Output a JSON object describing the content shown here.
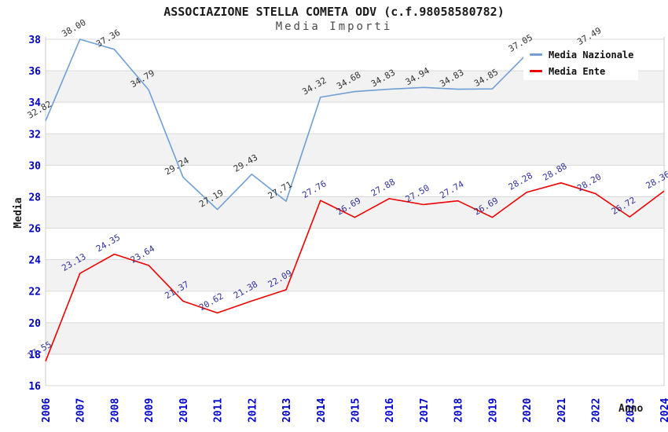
{
  "title": "ASSOCIAZIONE STELLA COMETA ODV (c.f.98058580782)",
  "subtitle": "Media Importi",
  "colors": {
    "band": "#f2f2f2",
    "grid": "#d9d9d9",
    "border": "#cccccc",
    "axis_tick": "#0000cc",
    "nazionale_line": "#6f9fd6",
    "ente_line": "#ee0000",
    "nazionale_label": "#333333",
    "ente_label": "#333399"
  },
  "legend": {
    "items": [
      {
        "label": "Media Nazionale",
        "color": "#6f9fd6"
      },
      {
        "label": "Media Ente",
        "color": "#ee0000"
      }
    ]
  },
  "chart_data": {
    "type": "line",
    "title": "ASSOCIAZIONE STELLA COMETA ODV (c.f.98058580782)",
    "subtitle": "Media Importi",
    "xlabel": "Anno",
    "ylabel": "Media",
    "ylim": [
      16,
      38
    ],
    "ytick_step": 2,
    "grid": "horizontal",
    "legend_position": "top-right-inside",
    "x": [
      2006,
      2007,
      2008,
      2009,
      2010,
      2011,
      2012,
      2013,
      2014,
      2015,
      2016,
      2017,
      2018,
      2019,
      2020,
      2021,
      2022,
      2023,
      2024
    ],
    "series": [
      {
        "name": "Media Nazionale",
        "color": "#6f9fd6",
        "label_color": "#333333",
        "values": [
          32.82,
          38.0,
          37.36,
          34.79,
          29.24,
          27.19,
          29.43,
          27.71,
          34.32,
          34.68,
          34.83,
          34.94,
          34.83,
          34.85,
          37.05,
          37.46,
          37.49,
          null,
          null
        ],
        "labels": [
          "32.82",
          "38.00",
          "37.36",
          "34.79",
          "29.24",
          "27.19",
          "29.43",
          "27.71",
          "34.32",
          "34.68",
          "34.83",
          "34.94",
          "34.83",
          "34.85",
          "37.05",
          null,
          "37.49",
          null,
          null
        ]
      },
      {
        "name": "Media Ente",
        "color": "#ee0000",
        "label_color": "#333399",
        "values": [
          17.55,
          23.13,
          24.35,
          23.64,
          21.37,
          20.62,
          21.38,
          22.09,
          27.76,
          26.69,
          27.88,
          27.5,
          27.74,
          26.69,
          28.28,
          28.88,
          28.2,
          26.72,
          28.36
        ],
        "labels": [
          "17.55",
          "23.13",
          "24.35",
          "23.64",
          "21.37",
          "20.62",
          "21.38",
          "22.09",
          "27.76",
          "26.69",
          "27.88",
          "27.50",
          "27.74",
          "26.69",
          "28.28",
          "28.88",
          "28.20",
          "26.72",
          "28.36"
        ]
      }
    ]
  }
}
